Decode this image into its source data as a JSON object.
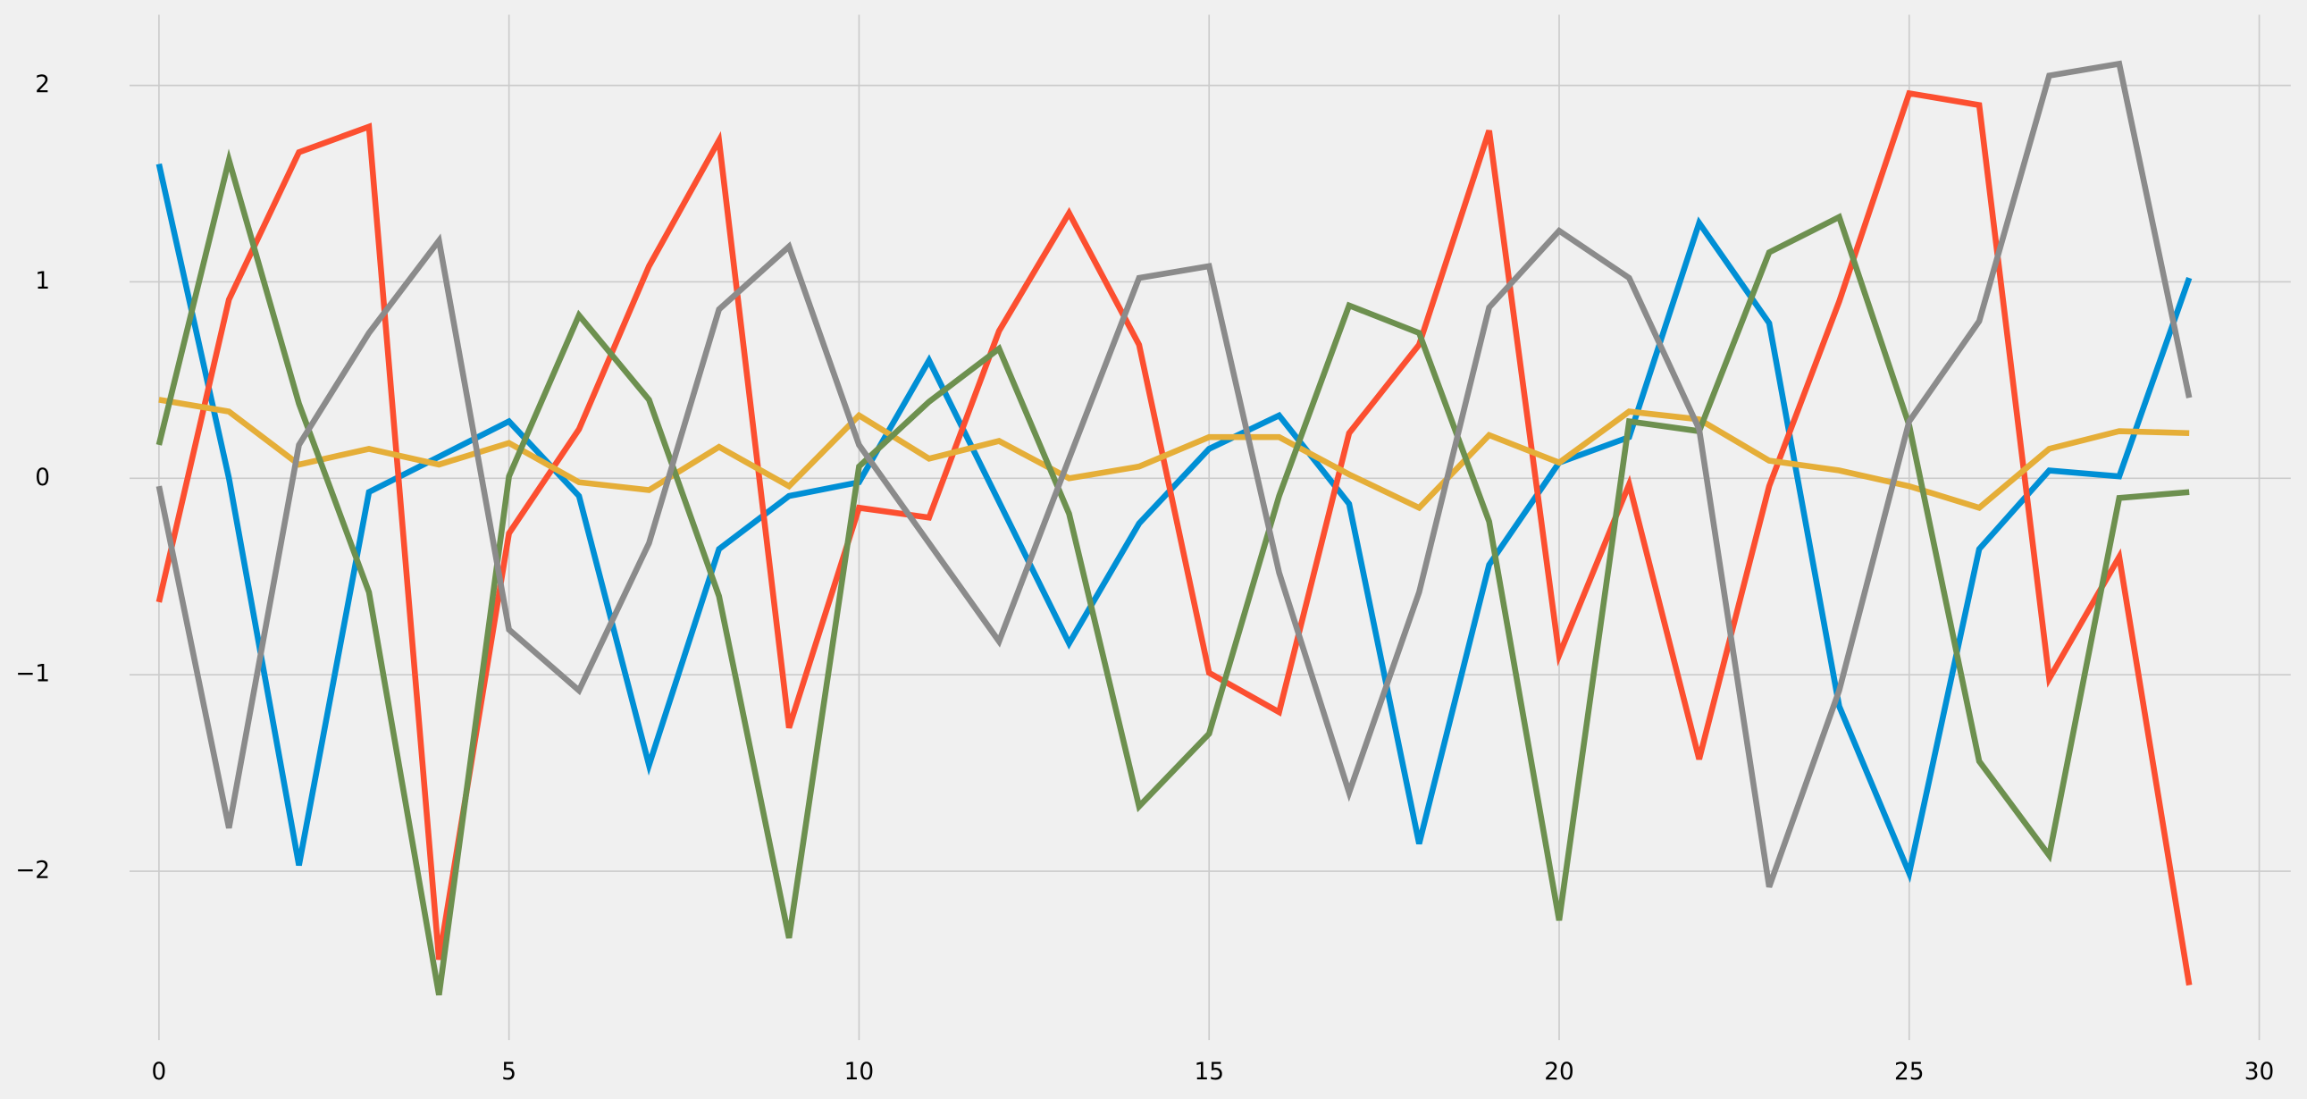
{
  "chart_data": {
    "type": "line",
    "x": [
      0,
      1,
      2,
      3,
      4,
      5,
      6,
      7,
      8,
      9,
      10,
      11,
      12,
      13,
      14,
      15,
      16,
      17,
      18,
      19,
      20,
      21,
      22,
      23,
      24,
      25,
      26,
      27,
      28,
      29
    ],
    "series": [
      {
        "color": "#008fd5",
        "values": [
          1.6,
          0.0,
          -1.97,
          -0.07,
          0.11,
          0.29,
          -0.09,
          -1.46,
          -0.36,
          -0.09,
          -0.02,
          0.6,
          -0.12,
          -0.84,
          -0.23,
          0.15,
          0.32,
          -0.13,
          -1.86,
          -0.44,
          0.08,
          0.21,
          1.3,
          0.79,
          -1.16,
          -2.01,
          -0.36,
          0.04,
          0.01,
          1.02
        ]
      },
      {
        "color": "#fc4f30",
        "values": [
          -0.63,
          0.91,
          1.66,
          1.79,
          -2.45,
          -0.28,
          0.25,
          1.08,
          1.72,
          -1.27,
          -0.15,
          -0.2,
          0.75,
          1.35,
          0.68,
          -0.99,
          -1.19,
          0.23,
          0.68,
          1.77,
          -0.9,
          -0.03,
          -1.43,
          -0.04,
          0.9,
          1.96,
          1.9,
          -1.02,
          -0.4,
          -2.58
        ]
      },
      {
        "color": "#e5ae38",
        "values": [
          0.4,
          0.34,
          0.07,
          0.15,
          0.07,
          0.18,
          -0.02,
          -0.06,
          0.16,
          -0.04,
          0.32,
          0.1,
          0.19,
          0.0,
          0.06,
          0.21,
          0.21,
          0.02,
          -0.15,
          0.22,
          0.08,
          0.34,
          0.3,
          0.09,
          0.04,
          -0.04,
          -0.15,
          0.15,
          0.24,
          0.23
        ]
      },
      {
        "color": "#6d904f",
        "values": [
          0.17,
          1.62,
          0.38,
          -0.58,
          -2.63,
          0.01,
          0.83,
          0.4,
          -0.6,
          -2.34,
          0.06,
          0.39,
          0.66,
          -0.18,
          -1.67,
          -1.3,
          -0.09,
          0.88,
          0.74,
          -0.22,
          -2.25,
          0.29,
          0.24,
          1.15,
          1.33,
          0.27,
          -1.44,
          -1.92,
          -0.1,
          -0.07
        ]
      },
      {
        "color": "#8b8b8b",
        "values": [
          -0.04,
          -1.78,
          0.17,
          0.74,
          1.21,
          -0.77,
          -1.08,
          -0.33,
          0.86,
          1.18,
          0.17,
          -0.33,
          -0.83,
          0.1,
          1.02,
          1.08,
          -0.48,
          -1.6,
          -0.58,
          0.87,
          1.26,
          1.02,
          0.25,
          -2.08,
          -1.08,
          0.29,
          0.8,
          2.05,
          2.11,
          0.41
        ]
      }
    ],
    "xlim": [
      -0.42,
      30.45
    ],
    "xticks": [
      0,
      5,
      10,
      15,
      20,
      25,
      30
    ],
    "ylim": [
      -2.86,
      2.36
    ],
    "yticks": [
      {
        "value": -2,
        "label": "−2"
      },
      {
        "value": -1,
        "label": "−1"
      },
      0,
      1,
      2
    ],
    "grid": true
  }
}
